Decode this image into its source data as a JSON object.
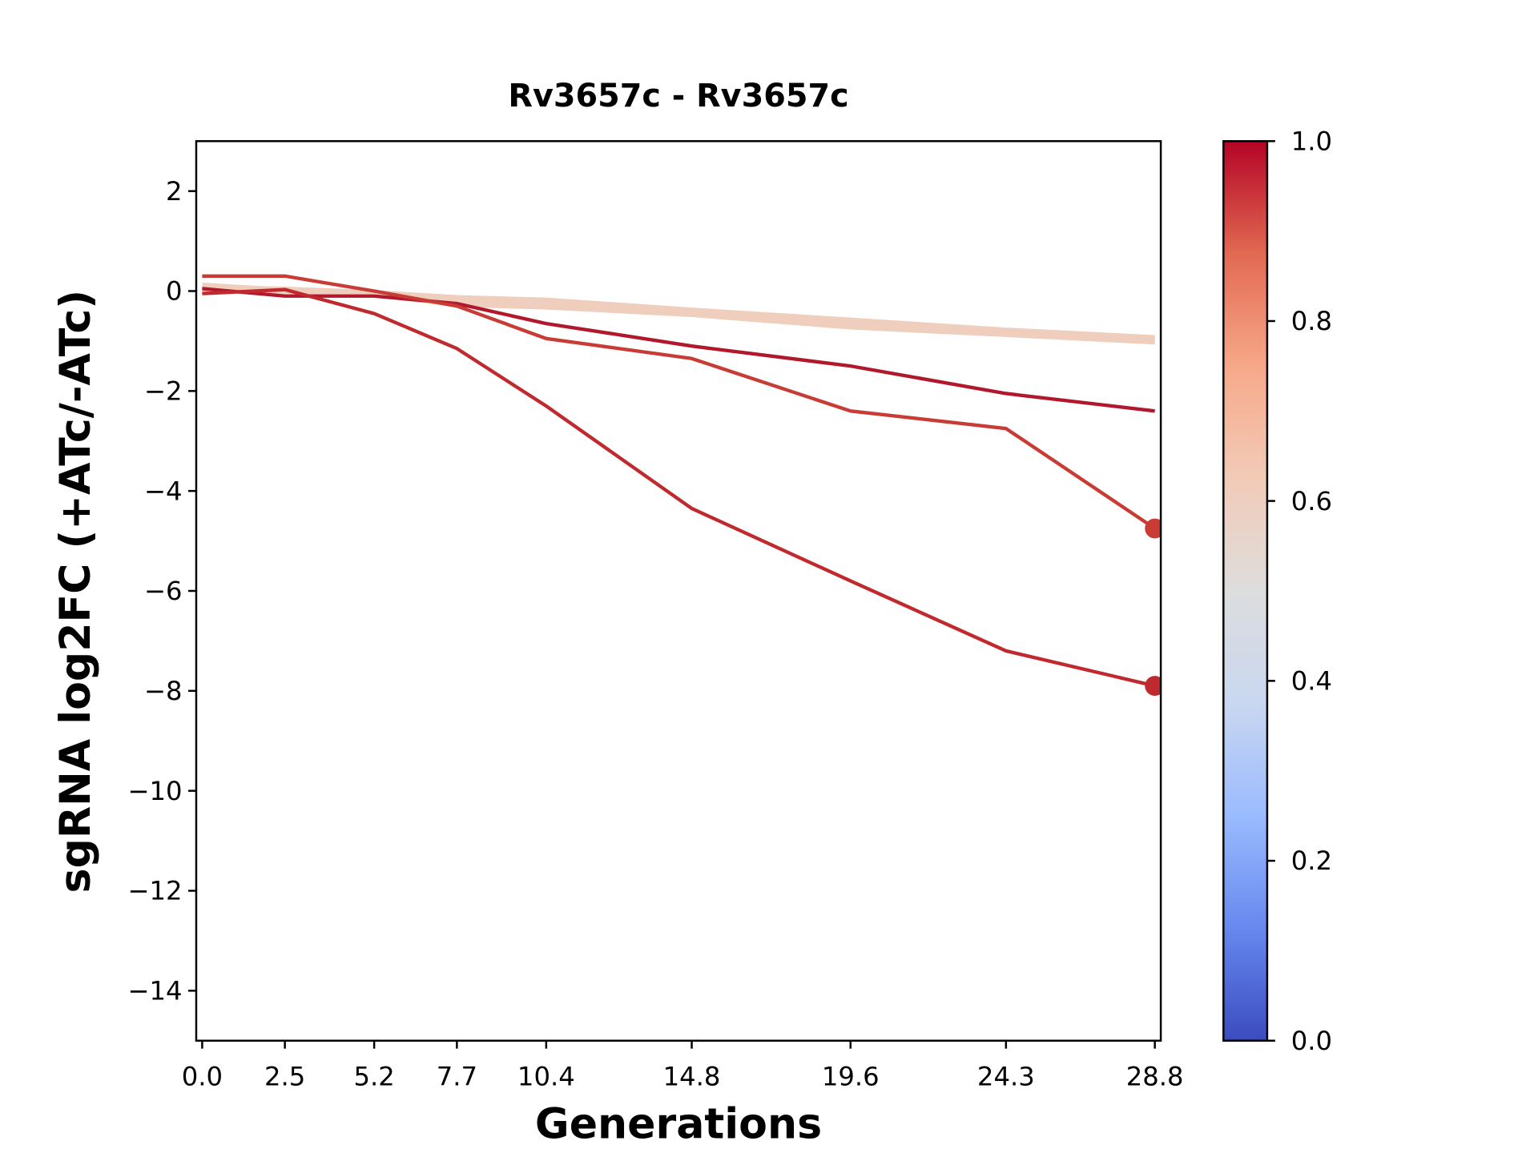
{
  "chart_data": {
    "type": "line",
    "title": "Rv3657c - Rv3657c",
    "x_label": "Generations",
    "y_label": "sgRNA log2FC (+ATc/-ATc)",
    "x": [
      0,
      2.5,
      5.2,
      7.7,
      10.4,
      14.8,
      19.6,
      24.3,
      28.8
    ],
    "series": [
      {
        "color": "#efcebd",
        "values": [
          0.1,
          0.0,
          -0.05,
          -0.15,
          -0.2,
          -0.4,
          -0.6,
          -0.8,
          -0.95
        ],
        "end_marker": false
      },
      {
        "color": "#efcebd",
        "values": [
          0.05,
          0.02,
          -0.05,
          -0.25,
          -0.3,
          -0.45,
          -0.7,
          -0.85,
          -1.0
        ],
        "end_marker": false
      },
      {
        "color": "#b2182b",
        "values": [
          0.05,
          -0.1,
          -0.1,
          -0.25,
          -0.65,
          -1.1,
          -1.5,
          -2.05,
          -2.4
        ],
        "end_marker": false
      },
      {
        "color": "#c83c35",
        "values": [
          0.3,
          0.3,
          0.0,
          -0.3,
          -0.95,
          -1.35,
          -2.4,
          -2.75,
          -4.75
        ],
        "end_marker": true
      },
      {
        "color": "#c02a2e",
        "values": [
          -0.05,
          0.03,
          -0.45,
          -1.15,
          -2.3,
          -4.35,
          -5.8,
          -7.2,
          -7.9
        ],
        "end_marker": true
      }
    ],
    "xlim": [
      -0.18,
      28.98
    ],
    "ylim": [
      -15,
      3
    ],
    "xticks": [
      {
        "value": 0,
        "label": "0.0"
      },
      2.5,
      5.2,
      7.7,
      10.4,
      14.8,
      19.6,
      24.3,
      28.8
    ],
    "yticks": [
      2,
      0,
      {
        "value": -2,
        "label": "−2"
      },
      {
        "value": -4,
        "label": "−4"
      },
      {
        "value": -6,
        "label": "−6"
      },
      {
        "value": -8,
        "label": "−8"
      },
      {
        "value": -10,
        "label": "−10"
      },
      {
        "value": -12,
        "label": "−12"
      },
      {
        "value": -14,
        "label": "−14"
      }
    ],
    "colorbar": {
      "lim": [
        0,
        1
      ],
      "ticks": [
        {
          "value": 0,
          "label": "0.0"
        },
        0.2,
        0.4,
        0.6,
        0.8,
        {
          "value": 1,
          "label": "1.0"
        }
      ],
      "colors": [
        "#3b4cc0",
        "#6788ee",
        "#9abbff",
        "#c9d7f0",
        "#dddddd",
        "#f2cbb7",
        "#f7a889",
        "#e26952",
        "#b40426"
      ]
    }
  }
}
